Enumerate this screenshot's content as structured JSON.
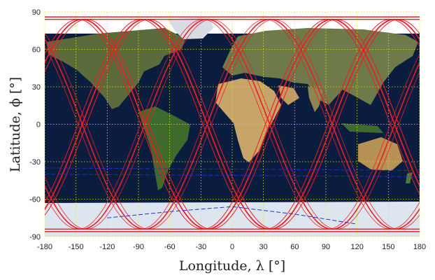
{
  "chart_data": {
    "type": "line",
    "title": "",
    "xlabel": "Longitude, λ [°]",
    "ylabel": "Latitude, ϕ [°]",
    "xlim": [
      -180,
      180
    ],
    "ylim": [
      -90,
      90
    ],
    "x_ticks": [
      -180,
      -150,
      -120,
      -90,
      -60,
      -30,
      0,
      30,
      60,
      90,
      120,
      150,
      180
    ],
    "y_ticks": [
      -90,
      -60,
      -30,
      0,
      30,
      60,
      90
    ],
    "grid": true,
    "background": "world satellite map",
    "colors": {
      "ground_track": "#ee1c25",
      "overlay_track": "#2232d6",
      "grid": "#e6e60a",
      "ocean": "#0b1d3e"
    },
    "series": [
      {
        "style": "solid",
        "color": "#ee1c25",
        "description_points_lon_lat": [
          [
            -176,
            -84
          ],
          [
            -150,
            -18
          ],
          [
            -133,
            45
          ],
          [
            -114,
            84
          ],
          [
            -95,
            20
          ],
          [
            -76,
            -45
          ],
          [
            -55,
            -84
          ],
          [
            -30,
            -18
          ],
          [
            -13,
            45
          ],
          [
            6,
            84
          ],
          [
            25,
            20
          ],
          [
            44,
            -45
          ],
          [
            65,
            -84
          ],
          [
            90,
            -18
          ],
          [
            107,
            45
          ],
          [
            126,
            84
          ],
          [
            145,
            20
          ],
          [
            164,
            -45
          ],
          [
            180,
            -60
          ]
        ]
      },
      {
        "style": "dashed",
        "color": "#2232d6",
        "description_points_lon_lat": [
          [
            -120,
            -75
          ],
          [
            -60,
            -70
          ],
          [
            0,
            -66
          ],
          [
            60,
            -72
          ],
          [
            120,
            -80
          ]
        ]
      }
    ]
  }
}
